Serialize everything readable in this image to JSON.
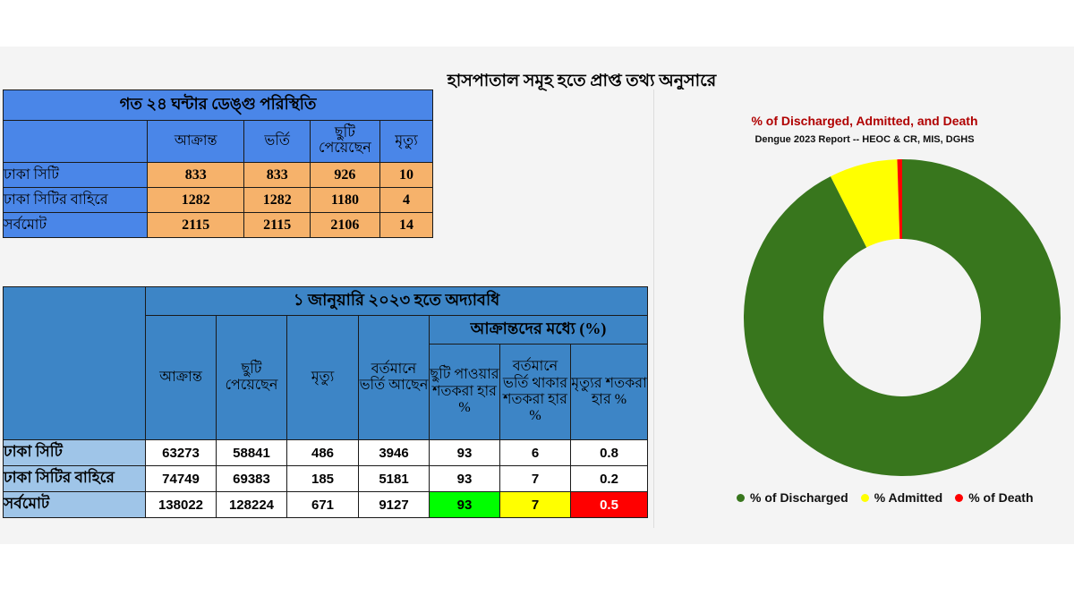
{
  "heading": "হাসপাতাল সমূহ হতে প্রাপ্ত তথ্য অনুসারে",
  "table_24h": {
    "title": "গত ২৪ ঘন্টার ডেঙ্গু পরিস্থিতি",
    "headers": [
      "আক্রান্ত",
      "ভর্তি",
      "ছুটি পেয়েছেন",
      "মৃত্যু"
    ],
    "rows": [
      {
        "label": "ঢাকা সিটি",
        "values": [
          "833",
          "833",
          "926",
          "10"
        ]
      },
      {
        "label": "ঢাকা সিটির বাহিরে",
        "values": [
          "1282",
          "1282",
          "1180",
          "4"
        ]
      },
      {
        "label": "সর্বমোট",
        "values": [
          "2115",
          "2115",
          "2106",
          "14"
        ]
      }
    ]
  },
  "table_ytd": {
    "title": "১ জানুয়ারি ২০২৩ হতে অদ্যাবধি",
    "subgroup": "আক্রান্তদের মধ্যে (%)",
    "headers": [
      "আক্রান্ত",
      "ছুটি পেয়েছেন",
      "মৃত্যু",
      "বর্তমানে ভর্তি আছেন",
      "ছুটি পাওয়ার শতকরা হার %",
      "বর্তমানে ভর্তি থাকার শতকরা হার %",
      "মৃত্যুর শতকরা হার %"
    ],
    "rows": [
      {
        "label": "ঢাকা সিটি",
        "values": [
          "63273",
          "58841",
          "486",
          "3946",
          "93",
          "6",
          "0.8"
        ]
      },
      {
        "label": "ঢাকা সিটির বাহিরে",
        "values": [
          "74749",
          "69383",
          "185",
          "5181",
          "93",
          "7",
          "0.2"
        ]
      },
      {
        "label": "সর্বমোট",
        "values": [
          "138022",
          "128224",
          "671",
          "9127",
          "93",
          "7",
          "0.5"
        ]
      }
    ]
  },
  "chart_data": {
    "type": "pie",
    "donut": true,
    "title": "% of Discharged, Admitted, and Death",
    "subtitle": "Dengue 2023 Report -- HEOC & CR, MIS, DGHS",
    "legend_position": "bottom",
    "categories": [
      "% of Discharged",
      "% Admitted",
      "% of Death"
    ],
    "values": [
      93,
      7,
      0.5
    ],
    "colors": [
      "#38761d",
      "#ffff00",
      "#ff0000"
    ]
  }
}
